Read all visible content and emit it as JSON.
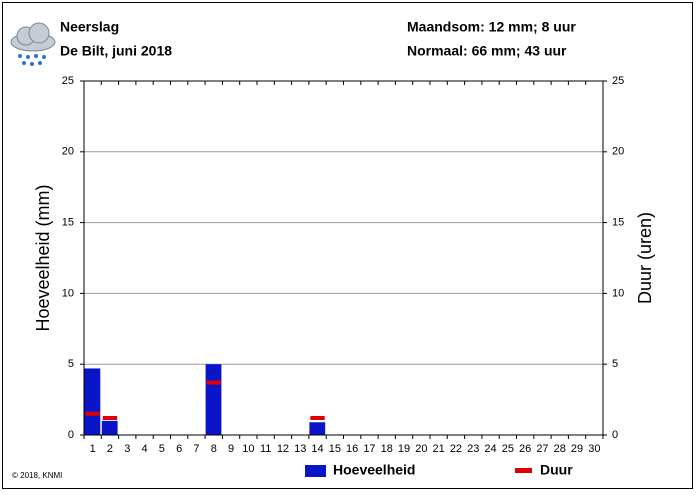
{
  "chart_data": {
    "type": "bar",
    "title": "Neerslag",
    "subtitle": "De Bilt, juni 2018",
    "summary": [
      "Maandsom: 12 mm; 8 uur",
      "Normaal: 66 mm; 43 uur"
    ],
    "ylabel": "Hoeveelheid (mm)",
    "y2label": "Duur (uren)",
    "credit": "© 2018, KNMI",
    "categories": [
      "1",
      "2",
      "3",
      "4",
      "5",
      "6",
      "7",
      "8",
      "9",
      "10",
      "11",
      "12",
      "13",
      "14",
      "15",
      "16",
      "17",
      "18",
      "19",
      "20",
      "21",
      "22",
      "23",
      "24",
      "25",
      "26",
      "27",
      "28",
      "29",
      "30"
    ],
    "series": [
      {
        "name": "Hoeveelheid",
        "color": "#0a14c8",
        "values": [
          4.7,
          1.0,
          0,
          0,
          0,
          0,
          0,
          5.0,
          0,
          0,
          0,
          0,
          0,
          0.9,
          0,
          0,
          0,
          0,
          0,
          0,
          0,
          0,
          0,
          0,
          0,
          0,
          0,
          0,
          0,
          0
        ]
      },
      {
        "name": "Duur",
        "color": "#e00000",
        "axis": "y2",
        "values": [
          1.5,
          1.2,
          null,
          null,
          null,
          null,
          null,
          3.7,
          null,
          null,
          null,
          null,
          null,
          1.2,
          null,
          null,
          null,
          null,
          null,
          null,
          null,
          null,
          null,
          null,
          null,
          null,
          null,
          null,
          null,
          null
        ]
      }
    ],
    "ylim": [
      0,
      25
    ],
    "yticks": [
      0,
      5,
      10,
      15,
      20,
      25
    ],
    "y2lim": [
      0,
      25
    ],
    "y2ticks": [
      0,
      5,
      10,
      15,
      20,
      25
    ],
    "grid": true
  }
}
